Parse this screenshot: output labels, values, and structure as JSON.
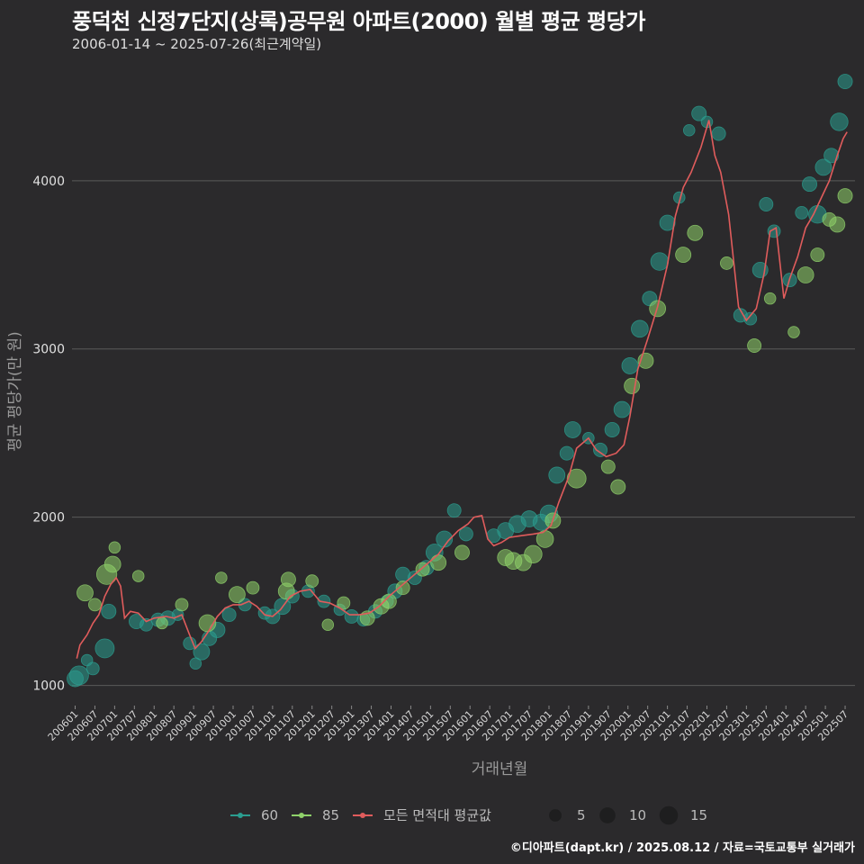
{
  "header": {
    "title": "풍덕천 신정7단지(상록)공무원 아파트(2000) 월별 평균 평당가",
    "subtitle": "2006-01-14 ~ 2025-07-26(최근계약일)"
  },
  "caption": "©디아파트(dapt.kr) / 2025.08.12 / 자료=국토교통부 실거래가",
  "chart_data": {
    "type": "scatter",
    "xlabel": "거래년월",
    "ylabel": "평균 평당가(만 원)",
    "ylim": [
      880,
      4700
    ],
    "yticks": [
      1000,
      2000,
      3000,
      4000
    ],
    "xlim": [
      2005.92,
      2025.75
    ],
    "xtick_labels": [
      "200601",
      "200607",
      "200701",
      "200707",
      "200801",
      "200807",
      "200901",
      "200907",
      "201001",
      "201007",
      "201101",
      "201107",
      "201201",
      "201207",
      "201301",
      "201307",
      "201401",
      "201407",
      "201501",
      "201507",
      "201601",
      "201607",
      "201701",
      "201707",
      "201801",
      "201807",
      "201901",
      "201907",
      "202001",
      "202007",
      "202101",
      "202107",
      "202201",
      "202207",
      "202301",
      "202307",
      "202401",
      "202407",
      "202501",
      "202507"
    ],
    "grid": "horizontal",
    "legend_position": "bottom",
    "colors": {
      "area_60": "#2a9d8f",
      "area_85": "#8fd16a",
      "average": "#e05c5c",
      "background": "#2b2a2c",
      "grid": "#5a5a5a"
    },
    "legend": {
      "series_labels": [
        "60",
        "85",
        "모든 면적대 평균값"
      ],
      "size_labels": [
        "5",
        "10",
        "15"
      ],
      "size_values": [
        5,
        10,
        15
      ]
    },
    "series": [
      {
        "name": "60",
        "points": [
          {
            "x": 2006.0,
            "y": 1040,
            "n": 8
          },
          {
            "x": 2006.1,
            "y": 1060,
            "n": 12
          },
          {
            "x": 2006.3,
            "y": 1150,
            "n": 3
          },
          {
            "x": 2006.45,
            "y": 1100,
            "n": 4
          },
          {
            "x": 2006.75,
            "y": 1220,
            "n": 12
          },
          {
            "x": 2006.85,
            "y": 1440,
            "n": 6
          },
          {
            "x": 2007.55,
            "y": 1380,
            "n": 6
          },
          {
            "x": 2007.8,
            "y": 1360,
            "n": 4
          },
          {
            "x": 2008.1,
            "y": 1390,
            "n": 5
          },
          {
            "x": 2008.35,
            "y": 1400,
            "n": 6
          },
          {
            "x": 2008.6,
            "y": 1420,
            "n": 3
          },
          {
            "x": 2008.9,
            "y": 1250,
            "n": 4
          },
          {
            "x": 2009.05,
            "y": 1130,
            "n": 3
          },
          {
            "x": 2009.2,
            "y": 1200,
            "n": 8
          },
          {
            "x": 2009.4,
            "y": 1280,
            "n": 6
          },
          {
            "x": 2009.6,
            "y": 1330,
            "n": 7
          },
          {
            "x": 2009.9,
            "y": 1420,
            "n": 5
          },
          {
            "x": 2010.3,
            "y": 1480,
            "n": 4
          },
          {
            "x": 2010.8,
            "y": 1430,
            "n": 4
          },
          {
            "x": 2011.0,
            "y": 1410,
            "n": 6
          },
          {
            "x": 2011.25,
            "y": 1470,
            "n": 8
          },
          {
            "x": 2011.5,
            "y": 1530,
            "n": 5
          },
          {
            "x": 2011.9,
            "y": 1560,
            "n": 4
          },
          {
            "x": 2012.3,
            "y": 1500,
            "n": 4
          },
          {
            "x": 2012.7,
            "y": 1450,
            "n": 3
          },
          {
            "x": 2013.0,
            "y": 1410,
            "n": 5
          },
          {
            "x": 2013.3,
            "y": 1390,
            "n": 4
          },
          {
            "x": 2013.6,
            "y": 1440,
            "n": 5
          },
          {
            "x": 2013.9,
            "y": 1500,
            "n": 4
          },
          {
            "x": 2014.1,
            "y": 1560,
            "n": 6
          },
          {
            "x": 2014.3,
            "y": 1660,
            "n": 6
          },
          {
            "x": 2014.6,
            "y": 1640,
            "n": 5
          },
          {
            "x": 2014.9,
            "y": 1700,
            "n": 6
          },
          {
            "x": 2015.1,
            "y": 1790,
            "n": 9
          },
          {
            "x": 2015.35,
            "y": 1870,
            "n": 8
          },
          {
            "x": 2015.6,
            "y": 2040,
            "n": 5
          },
          {
            "x": 2015.9,
            "y": 1900,
            "n": 5
          },
          {
            "x": 2016.6,
            "y": 1890,
            "n": 5
          },
          {
            "x": 2016.9,
            "y": 1920,
            "n": 8
          },
          {
            "x": 2017.2,
            "y": 1960,
            "n": 9
          },
          {
            "x": 2017.5,
            "y": 1990,
            "n": 8
          },
          {
            "x": 2017.8,
            "y": 1970,
            "n": 8
          },
          {
            "x": 2018.0,
            "y": 2020,
            "n": 10
          },
          {
            "x": 2018.2,
            "y": 2250,
            "n": 8
          },
          {
            "x": 2018.45,
            "y": 2380,
            "n": 5
          },
          {
            "x": 2018.6,
            "y": 2520,
            "n": 8
          },
          {
            "x": 2019.0,
            "y": 2470,
            "n": 3
          },
          {
            "x": 2019.3,
            "y": 2400,
            "n": 5
          },
          {
            "x": 2019.6,
            "y": 2520,
            "n": 6
          },
          {
            "x": 2019.85,
            "y": 2640,
            "n": 8
          },
          {
            "x": 2020.05,
            "y": 2900,
            "n": 8
          },
          {
            "x": 2020.3,
            "y": 3120,
            "n": 9
          },
          {
            "x": 2020.55,
            "y": 3300,
            "n": 6
          },
          {
            "x": 2020.8,
            "y": 3520,
            "n": 10
          },
          {
            "x": 2021.0,
            "y": 3750,
            "n": 7
          },
          {
            "x": 2021.3,
            "y": 3900,
            "n": 3
          },
          {
            "x": 2021.55,
            "y": 4300,
            "n": 3
          },
          {
            "x": 2021.8,
            "y": 4400,
            "n": 6
          },
          {
            "x": 2022.0,
            "y": 4350,
            "n": 3
          },
          {
            "x": 2022.3,
            "y": 4280,
            "n": 5
          },
          {
            "x": 2022.85,
            "y": 3200,
            "n": 5
          },
          {
            "x": 2023.1,
            "y": 3180,
            "n": 4
          },
          {
            "x": 2023.35,
            "y": 3470,
            "n": 7
          },
          {
            "x": 2023.5,
            "y": 3860,
            "n": 5
          },
          {
            "x": 2023.7,
            "y": 3700,
            "n": 4
          },
          {
            "x": 2024.1,
            "y": 3410,
            "n": 5
          },
          {
            "x": 2024.4,
            "y": 3810,
            "n": 4
          },
          {
            "x": 2024.6,
            "y": 3980,
            "n": 6
          },
          {
            "x": 2024.8,
            "y": 3800,
            "n": 10
          },
          {
            "x": 2024.95,
            "y": 4080,
            "n": 8
          },
          {
            "x": 2025.15,
            "y": 4150,
            "n": 6
          },
          {
            "x": 2025.35,
            "y": 4350,
            "n": 10
          },
          {
            "x": 2025.5,
            "y": 4590,
            "n": 6
          }
        ]
      },
      {
        "name": "85",
        "points": [
          {
            "x": 2006.25,
            "y": 1550,
            "n": 8
          },
          {
            "x": 2006.5,
            "y": 1480,
            "n": 4
          },
          {
            "x": 2006.8,
            "y": 1660,
            "n": 14
          },
          {
            "x": 2006.95,
            "y": 1720,
            "n": 8
          },
          {
            "x": 2007.0,
            "y": 1820,
            "n": 3
          },
          {
            "x": 2007.6,
            "y": 1650,
            "n": 3
          },
          {
            "x": 2008.2,
            "y": 1370,
            "n": 3
          },
          {
            "x": 2008.7,
            "y": 1480,
            "n": 4
          },
          {
            "x": 2009.35,
            "y": 1370,
            "n": 9
          },
          {
            "x": 2009.7,
            "y": 1640,
            "n": 3
          },
          {
            "x": 2010.1,
            "y": 1540,
            "n": 8
          },
          {
            "x": 2010.5,
            "y": 1580,
            "n": 4
          },
          {
            "x": 2011.35,
            "y": 1560,
            "n": 8
          },
          {
            "x": 2011.4,
            "y": 1630,
            "n": 6
          },
          {
            "x": 2012.0,
            "y": 1620,
            "n": 4
          },
          {
            "x": 2012.4,
            "y": 1360,
            "n": 3
          },
          {
            "x": 2012.8,
            "y": 1490,
            "n": 4
          },
          {
            "x": 2013.4,
            "y": 1400,
            "n": 6
          },
          {
            "x": 2013.75,
            "y": 1470,
            "n": 7
          },
          {
            "x": 2013.95,
            "y": 1500,
            "n": 6
          },
          {
            "x": 2014.3,
            "y": 1580,
            "n": 5
          },
          {
            "x": 2014.8,
            "y": 1690,
            "n": 5
          },
          {
            "x": 2015.2,
            "y": 1730,
            "n": 7
          },
          {
            "x": 2015.8,
            "y": 1790,
            "n": 6
          },
          {
            "x": 2016.9,
            "y": 1760,
            "n": 8
          },
          {
            "x": 2017.1,
            "y": 1740,
            "n": 9
          },
          {
            "x": 2017.35,
            "y": 1730,
            "n": 8
          },
          {
            "x": 2017.6,
            "y": 1780,
            "n": 10
          },
          {
            "x": 2017.9,
            "y": 1870,
            "n": 9
          },
          {
            "x": 2018.1,
            "y": 1980,
            "n": 7
          },
          {
            "x": 2018.7,
            "y": 2230,
            "n": 12
          },
          {
            "x": 2019.5,
            "y": 2300,
            "n": 5
          },
          {
            "x": 2019.75,
            "y": 2180,
            "n": 6
          },
          {
            "x": 2020.1,
            "y": 2780,
            "n": 7
          },
          {
            "x": 2020.45,
            "y": 2930,
            "n": 7
          },
          {
            "x": 2020.75,
            "y": 3240,
            "n": 8
          },
          {
            "x": 2021.4,
            "y": 3560,
            "n": 7
          },
          {
            "x": 2021.7,
            "y": 3690,
            "n": 7
          },
          {
            "x": 2022.5,
            "y": 3510,
            "n": 4
          },
          {
            "x": 2023.2,
            "y": 3020,
            "n": 5
          },
          {
            "x": 2023.6,
            "y": 3300,
            "n": 3
          },
          {
            "x": 2024.2,
            "y": 3100,
            "n": 3
          },
          {
            "x": 2024.5,
            "y": 3440,
            "n": 8
          },
          {
            "x": 2024.8,
            "y": 3560,
            "n": 5
          },
          {
            "x": 2025.1,
            "y": 3770,
            "n": 5
          },
          {
            "x": 2025.3,
            "y": 3740,
            "n": 7
          },
          {
            "x": 2025.5,
            "y": 3910,
            "n": 6
          }
        ]
      },
      {
        "name": "모든 면적대 평균값",
        "points": [
          {
            "x": 2006.04,
            "y": 1160
          },
          {
            "x": 2006.12,
            "y": 1240
          },
          {
            "x": 2006.3,
            "y": 1300
          },
          {
            "x": 2006.45,
            "y": 1370
          },
          {
            "x": 2006.6,
            "y": 1420
          },
          {
            "x": 2006.75,
            "y": 1530
          },
          {
            "x": 2006.9,
            "y": 1600
          },
          {
            "x": 2007.04,
            "y": 1640
          },
          {
            "x": 2007.15,
            "y": 1590
          },
          {
            "x": 2007.25,
            "y": 1400
          },
          {
            "x": 2007.4,
            "y": 1440
          },
          {
            "x": 2007.6,
            "y": 1430
          },
          {
            "x": 2007.8,
            "y": 1380
          },
          {
            "x": 2008.0,
            "y": 1400
          },
          {
            "x": 2008.3,
            "y": 1410
          },
          {
            "x": 2008.5,
            "y": 1400
          },
          {
            "x": 2008.7,
            "y": 1420
          },
          {
            "x": 2008.9,
            "y": 1300
          },
          {
            "x": 2009.04,
            "y": 1220
          },
          {
            "x": 2009.2,
            "y": 1260
          },
          {
            "x": 2009.4,
            "y": 1330
          },
          {
            "x": 2009.6,
            "y": 1410
          },
          {
            "x": 2009.8,
            "y": 1460
          },
          {
            "x": 2010.0,
            "y": 1480
          },
          {
            "x": 2010.2,
            "y": 1480
          },
          {
            "x": 2010.4,
            "y": 1500
          },
          {
            "x": 2010.6,
            "y": 1470
          },
          {
            "x": 2010.8,
            "y": 1420
          },
          {
            "x": 2011.0,
            "y": 1410
          },
          {
            "x": 2011.2,
            "y": 1450
          },
          {
            "x": 2011.45,
            "y": 1530
          },
          {
            "x": 2011.7,
            "y": 1560
          },
          {
            "x": 2011.95,
            "y": 1570
          },
          {
            "x": 2012.2,
            "y": 1500
          },
          {
            "x": 2012.45,
            "y": 1490
          },
          {
            "x": 2012.7,
            "y": 1460
          },
          {
            "x": 2012.95,
            "y": 1420
          },
          {
            "x": 2013.2,
            "y": 1420
          },
          {
            "x": 2013.45,
            "y": 1430
          },
          {
            "x": 2013.7,
            "y": 1470
          },
          {
            "x": 2013.95,
            "y": 1530
          },
          {
            "x": 2014.2,
            "y": 1580
          },
          {
            "x": 2014.45,
            "y": 1630
          },
          {
            "x": 2014.7,
            "y": 1680
          },
          {
            "x": 2014.95,
            "y": 1730
          },
          {
            "x": 2015.2,
            "y": 1780
          },
          {
            "x": 2015.45,
            "y": 1860
          },
          {
            "x": 2015.7,
            "y": 1920
          },
          {
            "x": 2015.95,
            "y": 1960
          },
          {
            "x": 2016.1,
            "y": 2000
          },
          {
            "x": 2016.3,
            "y": 2010
          },
          {
            "x": 2016.45,
            "y": 1870
          },
          {
            "x": 2016.6,
            "y": 1830
          },
          {
            "x": 2016.8,
            "y": 1850
          },
          {
            "x": 2017.0,
            "y": 1880
          },
          {
            "x": 2017.3,
            "y": 1890
          },
          {
            "x": 2017.6,
            "y": 1900
          },
          {
            "x": 2017.85,
            "y": 1910
          },
          {
            "x": 2018.05,
            "y": 1950
          },
          {
            "x": 2018.25,
            "y": 2090
          },
          {
            "x": 2018.5,
            "y": 2240
          },
          {
            "x": 2018.7,
            "y": 2410
          },
          {
            "x": 2018.85,
            "y": 2440
          },
          {
            "x": 2019.0,
            "y": 2470
          },
          {
            "x": 2019.2,
            "y": 2400
          },
          {
            "x": 2019.45,
            "y": 2360
          },
          {
            "x": 2019.7,
            "y": 2380
          },
          {
            "x": 2019.9,
            "y": 2430
          },
          {
            "x": 2020.05,
            "y": 2600
          },
          {
            "x": 2020.25,
            "y": 2880
          },
          {
            "x": 2020.5,
            "y": 3060
          },
          {
            "x": 2020.75,
            "y": 3250
          },
          {
            "x": 2021.0,
            "y": 3500
          },
          {
            "x": 2021.2,
            "y": 3790
          },
          {
            "x": 2021.4,
            "y": 3960
          },
          {
            "x": 2021.6,
            "y": 4050
          },
          {
            "x": 2021.85,
            "y": 4200
          },
          {
            "x": 2022.05,
            "y": 4360
          },
          {
            "x": 2022.2,
            "y": 4150
          },
          {
            "x": 2022.35,
            "y": 4050
          },
          {
            "x": 2022.55,
            "y": 3800
          },
          {
            "x": 2022.8,
            "y": 3250
          },
          {
            "x": 2023.0,
            "y": 3170
          },
          {
            "x": 2023.25,
            "y": 3240
          },
          {
            "x": 2023.45,
            "y": 3450
          },
          {
            "x": 2023.6,
            "y": 3700
          },
          {
            "x": 2023.75,
            "y": 3720
          },
          {
            "x": 2023.95,
            "y": 3300
          },
          {
            "x": 2024.1,
            "y": 3420
          },
          {
            "x": 2024.3,
            "y": 3550
          },
          {
            "x": 2024.5,
            "y": 3720
          },
          {
            "x": 2024.7,
            "y": 3800
          },
          {
            "x": 2024.9,
            "y": 3900
          },
          {
            "x": 2025.1,
            "y": 4000
          },
          {
            "x": 2025.3,
            "y": 4150
          },
          {
            "x": 2025.45,
            "y": 4250
          },
          {
            "x": 2025.55,
            "y": 4290
          }
        ]
      }
    ]
  }
}
